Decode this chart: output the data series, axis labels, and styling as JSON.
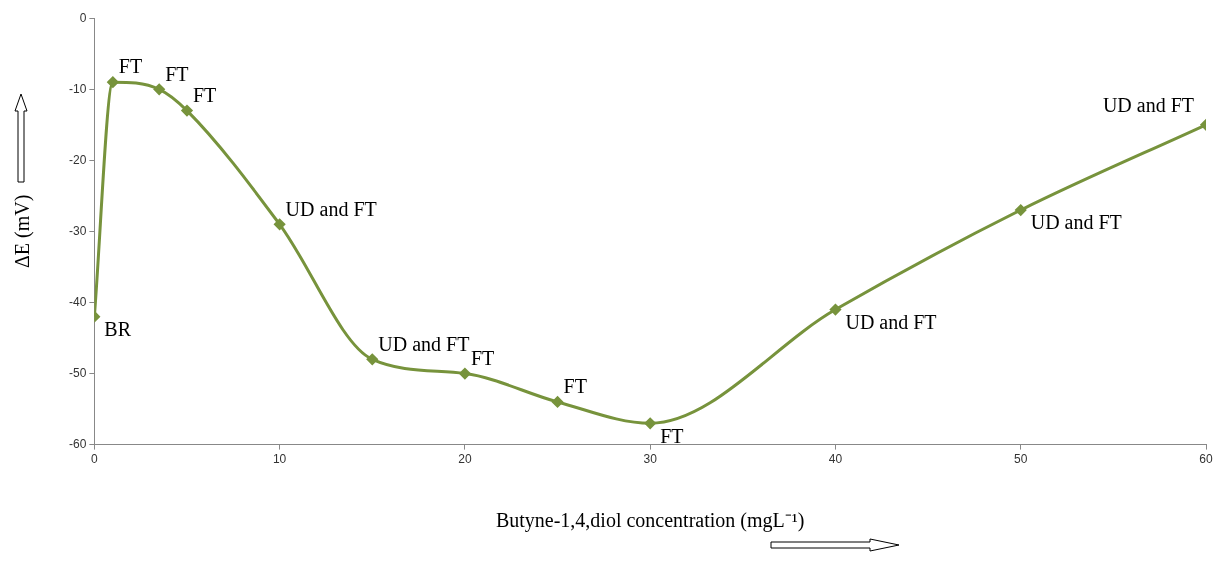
{
  "chart_data": {
    "type": "line",
    "xlabel": "Butyne-1,4,diol concentration (mgL⁻¹)",
    "ylabel": "ΔE (mV)",
    "x": [
      0,
      1,
      3.5,
      5,
      10,
      15,
      20,
      25,
      30,
      40,
      50,
      60
    ],
    "series": [
      {
        "color": "#77933c",
        "values": [
          -42,
          -9,
          -10,
          -13,
          -29,
          -48,
          -50,
          -54,
          -57,
          -41,
          -27,
          -15
        ]
      }
    ],
    "xlim": [
      0,
      60
    ],
    "xticks": [
      0,
      10,
      20,
      30,
      40,
      50,
      60
    ],
    "ylim": [
      -60,
      0
    ],
    "yticks": [
      -60,
      -50,
      -40,
      -30,
      -20,
      -10,
      0
    ],
    "grid": false,
    "legend": false,
    "marker": "diamond",
    "line_style": "solid",
    "annotations": [
      {
        "text": "BR",
        "x": 0,
        "y": -42
      },
      {
        "text": "FT",
        "x": 1,
        "y": -9
      },
      {
        "text": "FT",
        "x": 3.5,
        "y": -10
      },
      {
        "text": "FT",
        "x": 5,
        "y": -13
      },
      {
        "text": "UD and FT",
        "x": 10,
        "y": -29
      },
      {
        "text": "UD and FT",
        "x": 15,
        "y": -48
      },
      {
        "text": "FT",
        "x": 20,
        "y": -50
      },
      {
        "text": "FT",
        "x": 25,
        "y": -54
      },
      {
        "text": "FT",
        "x": 30,
        "y": -57
      },
      {
        "text": "UD and FT",
        "x": 40,
        "y": -41
      },
      {
        "text": "UD and FT",
        "x": 50,
        "y": -27
      },
      {
        "text": "UD and FT",
        "x": 60,
        "y": -15
      }
    ]
  }
}
